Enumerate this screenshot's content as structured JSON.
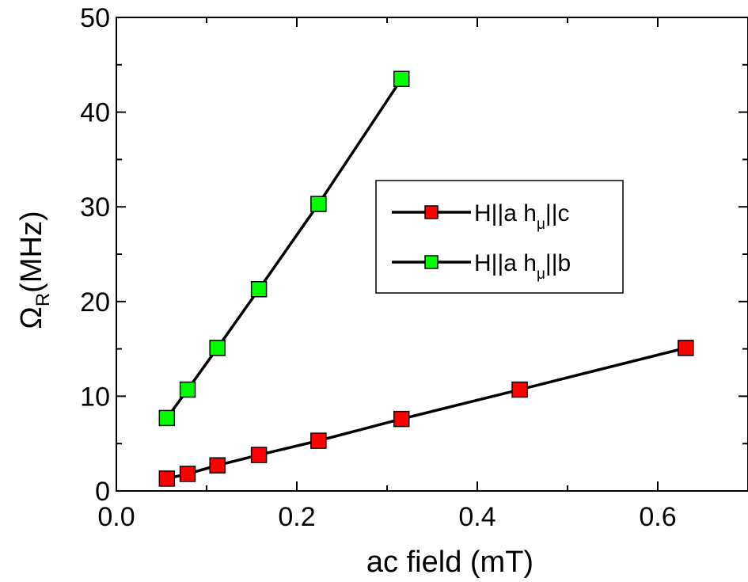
{
  "chart_data": {
    "type": "line",
    "xlabel": "ac field (mT)",
    "ylabel_symbol": "Ω",
    "ylabel_sub": "R",
    "ylabel_unit": "(MHz)",
    "xlim": [
      0.0,
      0.7
    ],
    "ylim": [
      0,
      50
    ],
    "x_ticks": [
      0.0,
      0.2,
      0.4,
      0.6
    ],
    "x_tick_labels": [
      "0.0",
      "0.2",
      "0.4",
      "0.6"
    ],
    "y_ticks": [
      0,
      10,
      20,
      30,
      40,
      50
    ],
    "y_tick_labels": [
      "0",
      "10",
      "20",
      "30",
      "40",
      "50"
    ],
    "grid": false,
    "legend_position": "right",
    "series": [
      {
        "name_main": "H||a h",
        "name_sub": "μ",
        "name_tail": "||c",
        "color": "#ff0000",
        "x": [
          0.056,
          0.079,
          0.112,
          0.158,
          0.224,
          0.316,
          0.447,
          0.631
        ],
        "y": [
          1.3,
          1.8,
          2.7,
          3.8,
          5.3,
          7.6,
          10.7,
          15.1
        ]
      },
      {
        "name_main": "H||a h",
        "name_sub": "μ",
        "name_tail": "||b",
        "color": "#00ff00",
        "x": [
          0.056,
          0.079,
          0.112,
          0.158,
          0.224,
          0.316
        ],
        "y": [
          7.7,
          10.7,
          15.1,
          21.3,
          30.3,
          43.5
        ]
      }
    ]
  }
}
